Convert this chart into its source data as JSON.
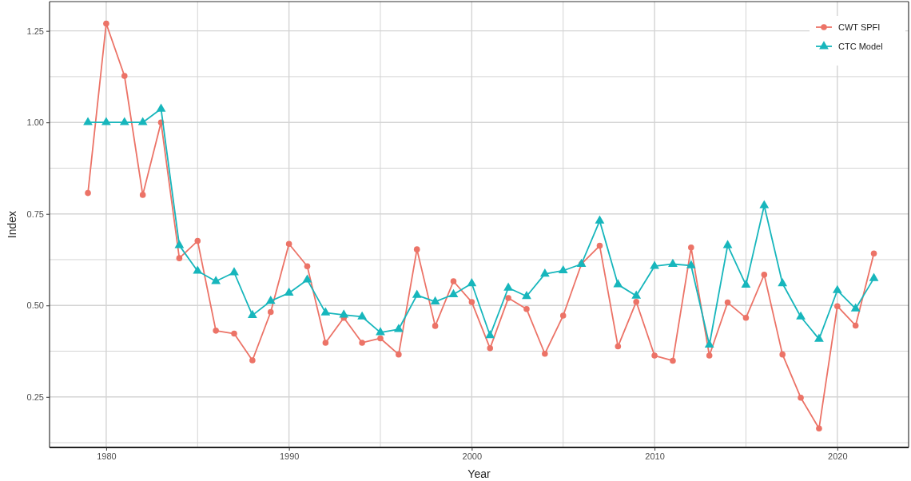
{
  "chart_data": {
    "type": "line",
    "xlabel": "Year",
    "ylabel": "Index",
    "x": [
      1979,
      1980,
      1981,
      1982,
      1983,
      1984,
      1985,
      1986,
      1987,
      1988,
      1989,
      1990,
      1991,
      1992,
      1993,
      1994,
      1995,
      1996,
      1997,
      1998,
      1999,
      2000,
      2001,
      2002,
      2003,
      2004,
      2005,
      2006,
      2007,
      2008,
      2009,
      2010,
      2011,
      2012,
      2013,
      2014,
      2015,
      2016,
      2017,
      2018,
      2019,
      2020,
      2021,
      2022
    ],
    "series": [
      {
        "name": "CWT SPFI",
        "color": "#ec7367",
        "marker": "circle",
        "values": [
          0.807,
          1.27,
          1.127,
          0.802,
          1.0,
          0.629,
          0.676,
          0.431,
          0.423,
          0.35,
          0.482,
          0.668,
          0.607,
          0.398,
          0.466,
          0.398,
          0.41,
          0.366,
          0.653,
          0.444,
          0.566,
          0.509,
          0.383,
          0.52,
          0.49,
          0.368,
          0.472,
          0.613,
          0.663,
          0.388,
          0.51,
          0.363,
          0.349,
          0.658,
          0.363,
          0.508,
          0.466,
          0.584,
          0.366,
          0.248,
          0.164,
          0.498,
          0.445,
          0.642
        ]
      },
      {
        "name": "CTC Model",
        "color": "#17b6bc",
        "marker": "triangle",
        "values": [
          1.0,
          1.0,
          1.0,
          1.0,
          1.037,
          0.664,
          0.594,
          0.566,
          0.59,
          0.473,
          0.512,
          0.534,
          0.57,
          0.48,
          0.474,
          0.469,
          0.426,
          0.435,
          0.528,
          0.51,
          0.53,
          0.56,
          0.418,
          0.548,
          0.525,
          0.586,
          0.595,
          0.613,
          0.731,
          0.557,
          0.526,
          0.607,
          0.613,
          0.609,
          0.392,
          0.664,
          0.556,
          0.773,
          0.56,
          0.469,
          0.408,
          0.541,
          0.491,
          0.574
        ]
      }
    ],
    "xlim": [
      1976.9,
      2023.9
    ],
    "ylim": [
      0.112,
      1.33
    ],
    "xticks": [
      1980,
      {
        "value": 1985,
        "label": null
      },
      1990,
      {
        "value": 1995,
        "label": null
      },
      2000,
      {
        "value": 2005,
        "label": null
      },
      2010,
      {
        "value": 2015,
        "label": null
      },
      2020
    ],
    "yticks": [
      {
        "value": 0.125,
        "label": null
      },
      {
        "value": 0.25,
        "label": "0.25"
      },
      {
        "value": 0.375,
        "label": null
      },
      {
        "value": 0.5,
        "label": "0.50"
      },
      {
        "value": 0.625,
        "label": null
      },
      {
        "value": 0.75,
        "label": "0.75"
      },
      {
        "value": 0.875,
        "label": null
      },
      {
        "value": 1,
        "label": "1.00"
      },
      {
        "value": 1.125,
        "label": null
      },
      {
        "value": 1.25,
        "label": "1.25"
      }
    ],
    "grid": true,
    "legend": "top right",
    "line_style": "solid"
  }
}
